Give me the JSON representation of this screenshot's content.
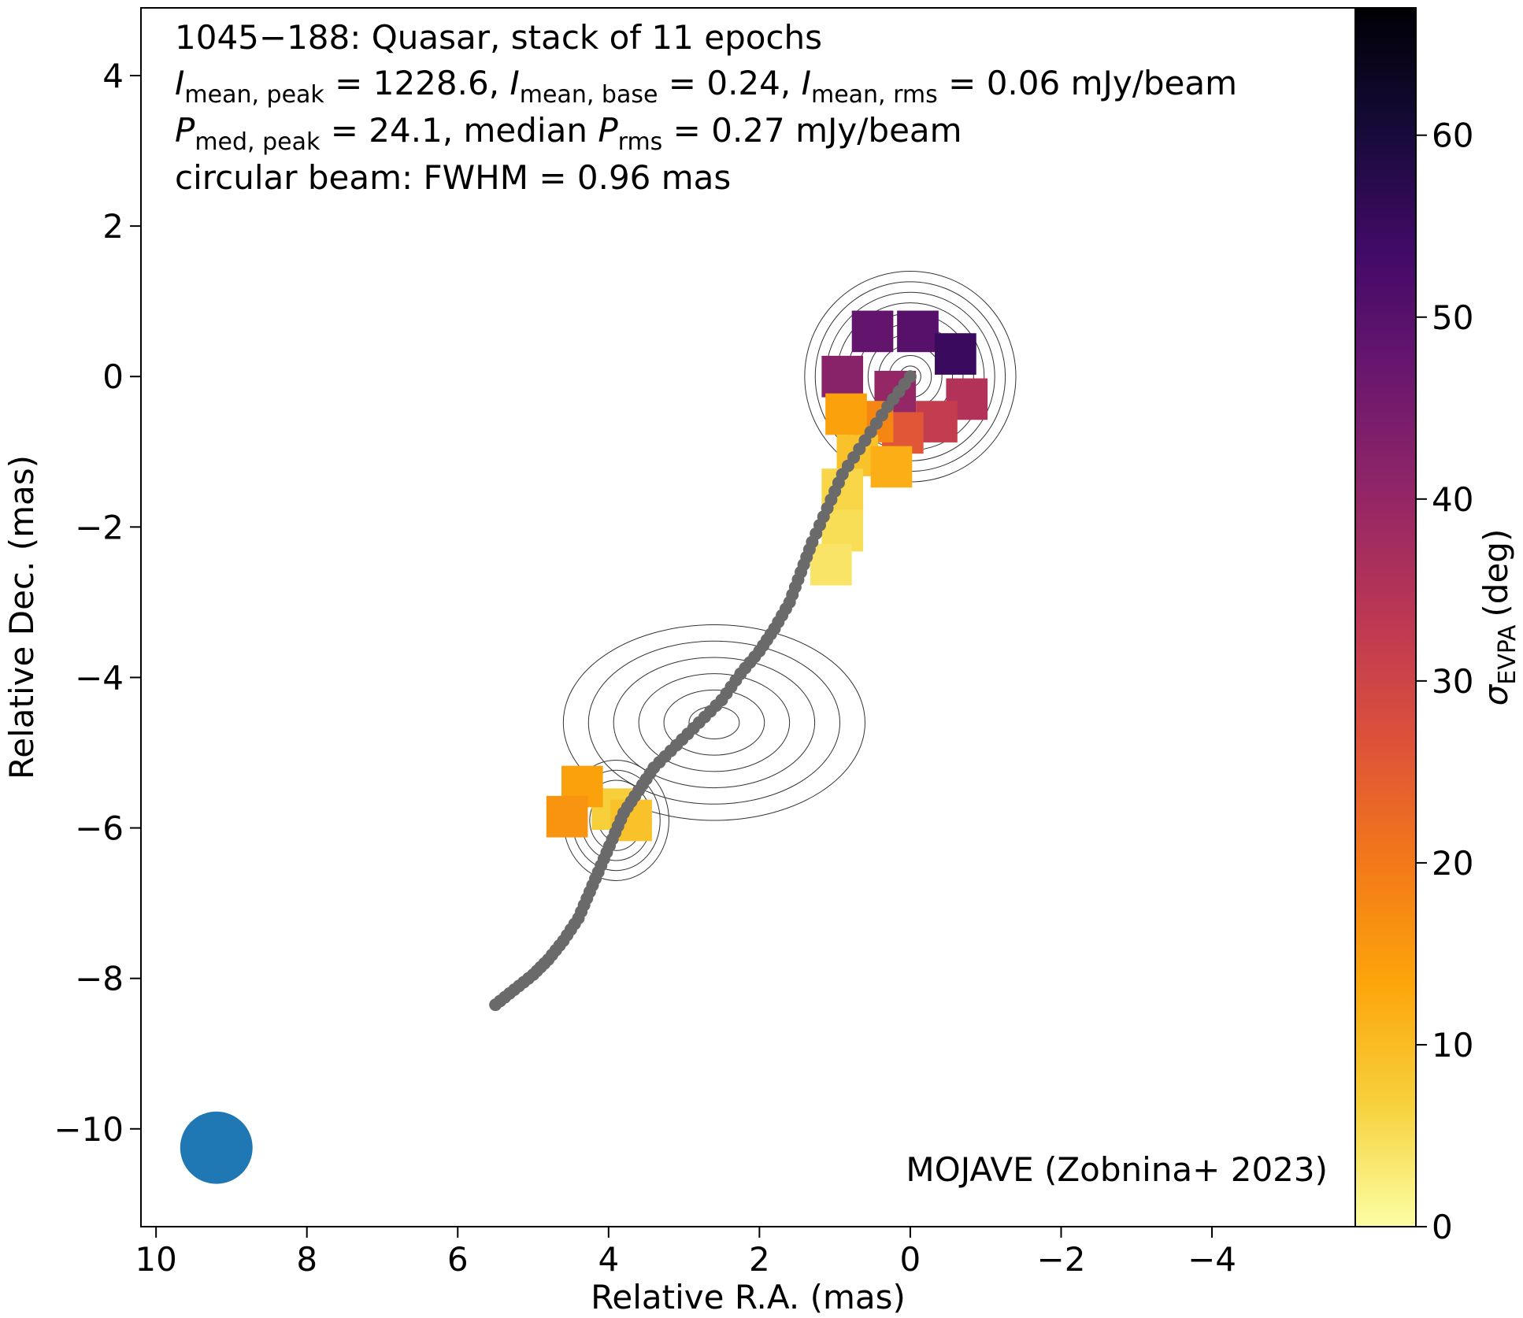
{
  "chart_data": {
    "type": "heatmap",
    "title": "1045−188: Quasar, stack of 11 epochs",
    "info_lines": {
      "line2": {
        "i_mean_peak": "1228.6",
        "i_mean_base": "0.24",
        "i_mean_rms": "0.06",
        "unit": "mJy/beam",
        "sub_peak": "mean, peak",
        "sub_base": "mean, base",
        "sub_rms": "mean, rms"
      },
      "line3": {
        "p_med_peak": "24.1",
        "p_rms": "0.27",
        "unit": "mJy/beam",
        "sub_peak": "med, peak",
        "sub_rms": "rms",
        "median_word": "median"
      },
      "line4": "circular beam: FWHM = 0.96 mas"
    },
    "xlabel": "Relative R.A. (mas)",
    "ylabel": "Relative Dec. (mas)",
    "xlim": [
      10.2,
      -5.9
    ],
    "ylim": [
      -11.3,
      4.9
    ],
    "x_ticks": [
      10,
      8,
      6,
      4,
      2,
      0,
      -2,
      -4
    ],
    "x_tick_labels": [
      "10",
      "8",
      "6",
      "4",
      "2",
      "0",
      "−2",
      "−4"
    ],
    "y_ticks": [
      4,
      2,
      0,
      -2,
      -4,
      -6,
      -8,
      -10
    ],
    "y_tick_labels": [
      "4",
      "2",
      "0",
      "−2",
      "−4",
      "−6",
      "−8",
      "−10"
    ],
    "colorbar": {
      "label_symbol": "σ",
      "label_sub": "EVPA",
      "label_unit": "(deg)",
      "range": [
        0,
        67
      ],
      "ticks": [
        0,
        10,
        20,
        30,
        40,
        50,
        60
      ],
      "tick_labels": [
        "0",
        "10",
        "20",
        "30",
        "40",
        "50",
        "60"
      ],
      "colormap": "inferno_r",
      "colors": [
        "#fcffa4",
        "#f7d13d",
        "#fca50a",
        "#f37819",
        "#dd513a",
        "#bc3754",
        "#932667",
        "#6a176e",
        "#420a68",
        "#160b39",
        "#000004"
      ]
    },
    "ridge_line": {
      "color": "#6a6a6a",
      "x": [
        0.0,
        0.3,
        0.6,
        0.9,
        1.1,
        1.3,
        1.45,
        1.6,
        1.8,
        2.0,
        2.25,
        2.5,
        2.8,
        3.1,
        3.4,
        3.6,
        3.8,
        3.95,
        4.1,
        4.25,
        4.4,
        4.6,
        4.8,
        5.0,
        5.25,
        5.5
      ],
      "y": [
        0.0,
        -0.4,
        -0.85,
        -1.3,
        -1.75,
        -2.2,
        -2.6,
        -3.0,
        -3.35,
        -3.65,
        -3.95,
        -4.3,
        -4.6,
        -4.9,
        -5.2,
        -5.5,
        -5.8,
        -6.15,
        -6.5,
        -6.85,
        -7.2,
        -7.5,
        -7.75,
        -7.95,
        -8.15,
        -8.35
      ]
    },
    "polarization_patches": [
      {
        "x": 0.9,
        "y": 0.0,
        "value": 42
      },
      {
        "x": 0.5,
        "y": 0.6,
        "value": 48
      },
      {
        "x": -0.1,
        "y": 0.6,
        "value": 50
      },
      {
        "x": -0.6,
        "y": 0.3,
        "value": 55
      },
      {
        "x": -0.75,
        "y": -0.3,
        "value": 35
      },
      {
        "x": 0.2,
        "y": -0.2,
        "value": 40
      },
      {
        "x": -0.35,
        "y": -0.6,
        "value": 32
      },
      {
        "x": 0.1,
        "y": -0.75,
        "value": 26
      },
      {
        "x": 0.5,
        "y": -0.6,
        "value": 18
      },
      {
        "x": 0.85,
        "y": -0.5,
        "value": 14
      },
      {
        "x": 0.7,
        "y": -1.05,
        "value": 9
      },
      {
        "x": 0.25,
        "y": -1.2,
        "value": 12
      },
      {
        "x": 0.9,
        "y": -1.5,
        "value": 6
      },
      {
        "x": 0.9,
        "y": -2.05,
        "value": 5
      },
      {
        "x": 1.05,
        "y": -2.5,
        "value": 4
      },
      {
        "x": 3.95,
        "y": -5.75,
        "value": 7
      },
      {
        "x": 3.7,
        "y": -5.9,
        "value": 9
      },
      {
        "x": 4.35,
        "y": -5.45,
        "value": 14
      },
      {
        "x": 4.55,
        "y": -5.85,
        "value": 16
      }
    ],
    "contour_regions": [
      {
        "x": 0.0,
        "y": 0.0,
        "dx": 1.4,
        "dy": 1.4
      },
      {
        "x": 3.9,
        "y": -5.9,
        "dx": 0.7,
        "dy": 0.8
      },
      {
        "x": 2.6,
        "y": -4.6,
        "dx": 2.0,
        "dy": 1.3
      }
    ],
    "beam": {
      "x": 9.2,
      "y": -10.25,
      "fwhm": 0.96,
      "color": "#1f77b4"
    },
    "credit": "MOJAVE (Zobnina+ 2023)"
  }
}
